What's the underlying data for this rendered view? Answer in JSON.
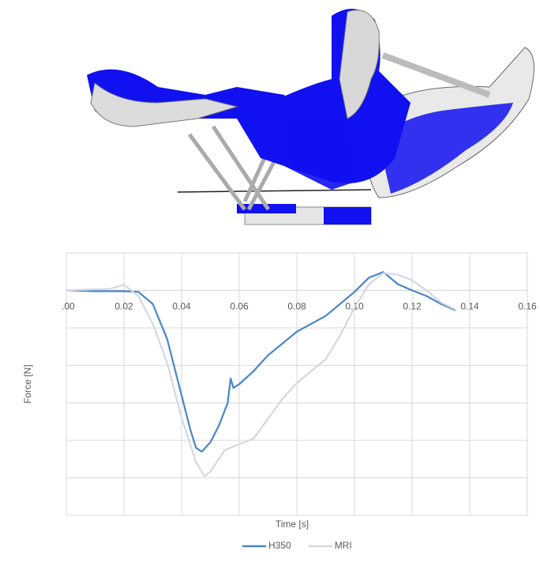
{
  "chart_data": {
    "type": "line",
    "xlabel": "Time [s]",
    "ylabel": "Force [N]",
    "xlim": [
      0,
      0.16
    ],
    "xticks": [
      {
        "value": 0,
        "label": ".00"
      },
      0.02,
      0.04,
      0.06,
      0.08,
      {
        "value": 0.1,
        "label": "0.10"
      },
      0.12,
      0.14,
      0.16
    ],
    "ylim": [
      -6,
      1
    ],
    "yticks": [
      -6,
      -5,
      -4,
      -3,
      -2,
      -1,
      0,
      1
    ],
    "ytick_labels": false,
    "grid": true,
    "legend": "bottom",
    "series": [
      {
        "name": "H350",
        "color": "#4a86c8",
        "x": [
          0,
          0.01,
          0.02,
          0.025,
          0.03,
          0.035,
          0.04,
          0.043,
          0.045,
          0.047,
          0.05,
          0.053,
          0.056,
          0.057,
          0.058,
          0.06,
          0.065,
          0.07,
          0.08,
          0.09,
          0.095,
          0.1,
          0.105,
          0.11,
          0.115,
          0.12,
          0.125,
          0.13,
          0.135
        ],
        "values": [
          0,
          -0.02,
          -0.02,
          -0.04,
          -0.36,
          -1.3,
          -2.8,
          -3.7,
          -4.2,
          -4.3,
          -4.05,
          -3.6,
          -3.0,
          -2.35,
          -2.6,
          -2.5,
          -2.15,
          -1.73,
          -1.1,
          -0.68,
          -0.36,
          -0.04,
          0.34,
          0.49,
          0.17,
          0,
          -0.15,
          -0.36,
          -0.53
        ]
      },
      {
        "name": "MRI",
        "color": "#d3d8e2",
        "x": [
          0,
          0.015,
          0.02,
          0.025,
          0.03,
          0.035,
          0.04,
          0.045,
          0.048,
          0.05,
          0.055,
          0.06,
          0.065,
          0.07,
          0.075,
          0.08,
          0.085,
          0.09,
          0.095,
          0.1,
          0.105,
          0.11,
          0.115,
          0.12,
          0.125,
          0.13,
          0.135
        ],
        "values": [
          0,
          0.04,
          0.15,
          -0.15,
          -0.89,
          -1.94,
          -3.4,
          -4.58,
          -4.96,
          -4.83,
          -4.26,
          -4.1,
          -3.95,
          -3.42,
          -2.89,
          -2.47,
          -2.15,
          -1.84,
          -1.2,
          -0.46,
          0.17,
          0.46,
          0.42,
          0.27,
          0,
          -0.32,
          -0.51
        ]
      }
    ]
  }
}
